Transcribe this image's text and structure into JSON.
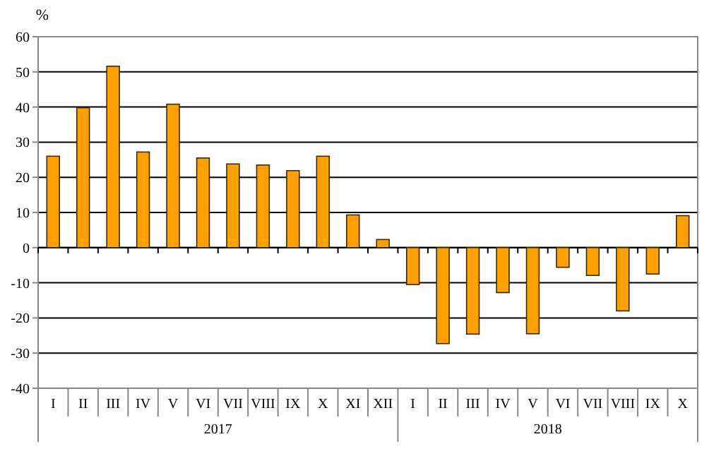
{
  "chart_data": {
    "type": "bar",
    "ylabel": "%",
    "categories": [
      "I",
      "II",
      "III",
      "IV",
      "V",
      "VI",
      "VII",
      "VIII",
      "IX",
      "X",
      "XI",
      "XII",
      "I",
      "II",
      "III",
      "IV",
      "V",
      "VI",
      "VII",
      "VIII",
      "IX",
      "X"
    ],
    "values": [
      26,
      39.8,
      51.6,
      27.2,
      40.8,
      25.5,
      23.8,
      23.5,
      21.9,
      26,
      9.3,
      2.3,
      -10.5,
      -27.3,
      -24.6,
      -12.8,
      -24.5,
      -5.6,
      -7.9,
      -18,
      -7.5,
      9.1
    ],
    "color": "#ffa000",
    "ylim": [
      -40,
      60
    ],
    "yticks": [
      -40,
      -30,
      -20,
      -10,
      0,
      10,
      20,
      30,
      40,
      50,
      60
    ],
    "grid": "y",
    "annotations": [
      "2017",
      "2018"
    ]
  }
}
